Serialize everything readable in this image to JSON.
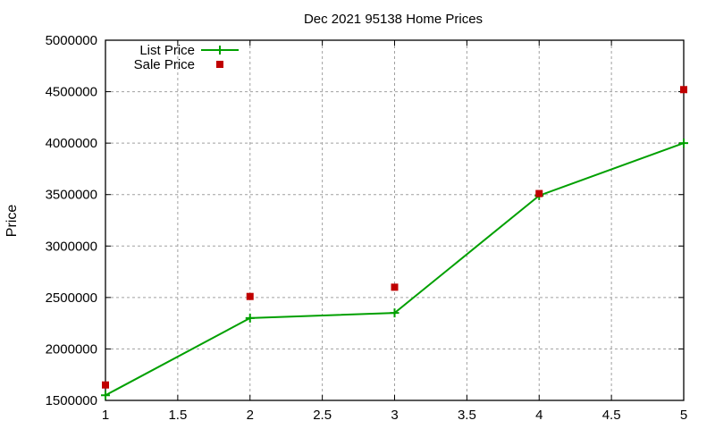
{
  "chart_data": {
    "type": "line",
    "title": "Dec 2021 95138 Home Prices",
    "xlabel": "",
    "ylabel": "Price",
    "xlim": [
      1,
      5
    ],
    "ylim": [
      1500000,
      5000000
    ],
    "x_ticks": [
      "1",
      "1.5",
      "2",
      "2.5",
      "3",
      "3.5",
      "4",
      "4.5",
      "5"
    ],
    "y_ticks": [
      "1500000",
      "2000000",
      "2500000",
      "3000000",
      "3500000",
      "4000000",
      "4500000",
      "5000000"
    ],
    "grid": true,
    "legend_position": "top-left",
    "x": [
      1,
      2,
      3,
      4,
      5
    ],
    "series": [
      {
        "name": "List Price",
        "style": "linespoints",
        "marker": "plus",
        "color": "#00a000",
        "values": [
          1550000,
          2300000,
          2350000,
          3490000,
          4000000
        ]
      },
      {
        "name": "Sale Price",
        "style": "points",
        "marker": "square",
        "color": "#c00000",
        "values": [
          1650000,
          2510000,
          2600000,
          3510000,
          4520000
        ]
      }
    ]
  }
}
